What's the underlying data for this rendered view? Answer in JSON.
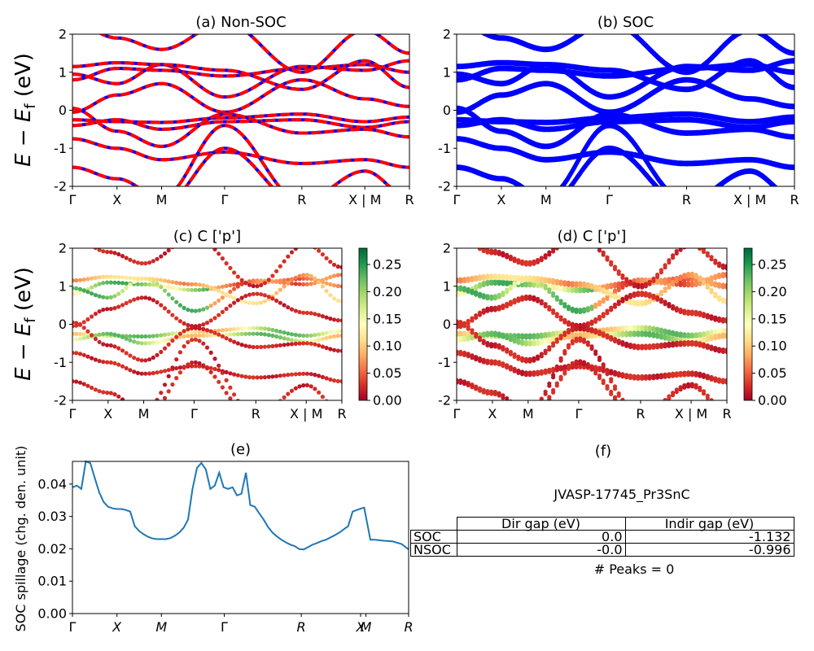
{
  "colors": {
    "nonsoc_blue": "#0000ff",
    "nonsoc_red": "#ff0000",
    "soc": "#0000ff",
    "spillage_line": "#1f77b4"
  },
  "ylabel_energy": "E − E",
  "ylabel_energy_sub": "f",
  "ylabel_energy_unit": " (eV)",
  "kpath_labels": [
    "Γ",
    "X",
    "M",
    "Γ",
    "R",
    "X | M",
    "R"
  ],
  "kpath_positions": [
    0,
    0.5,
    1.0,
    1.707,
    2.573,
    3.28,
    3.78
  ],
  "chart_data": [
    {
      "panel": "a",
      "type": "line",
      "title": "(a) Non-SOC",
      "ylim": [
        -2,
        2
      ],
      "yticks": [
        -2,
        -1,
        0,
        1,
        2
      ],
      "series_style": "blue solid with red dashed overlay",
      "note": "electronic band structure"
    },
    {
      "panel": "b",
      "type": "line",
      "title": "(b) SOC",
      "ylim": [
        -2,
        2
      ],
      "yticks": [
        -2,
        -1,
        0,
        1,
        2
      ],
      "series_style": "blue"
    },
    {
      "panel": "c",
      "type": "scatter",
      "title": "(c)  C ['p']",
      "ylim": [
        -2,
        2
      ],
      "yticks": [
        -2,
        -1,
        0,
        1,
        2
      ],
      "colorbar": {
        "colormap": "RdYlGn",
        "range": [
          0,
          0.28
        ],
        "ticks": [
          "0.00",
          "0.05",
          "0.10",
          "0.15",
          "0.20",
          "0.25"
        ]
      }
    },
    {
      "panel": "d",
      "type": "scatter",
      "title": "(d) C ['p']",
      "ylim": [
        -2,
        2
      ],
      "yticks": [
        -2,
        -1,
        0,
        1,
        2
      ],
      "colorbar": {
        "colormap": "RdYlGn",
        "range": [
          0,
          0.28
        ],
        "ticks": [
          "0.00",
          "0.05",
          "0.10",
          "0.15",
          "0.20",
          "0.25"
        ]
      }
    },
    {
      "panel": "e",
      "type": "line",
      "title": "(e)",
      "ylabel": "SOC spillage (chg. den. unit)",
      "ylim": [
        0,
        0.047
      ],
      "yticks": [
        "0.00",
        "0.01",
        "0.02",
        "0.03",
        "0.04"
      ],
      "xticks": [
        "Γ",
        "X",
        "M",
        "Γ",
        "R",
        "X",
        "M",
        "R"
      ],
      "x": [
        0,
        0.05,
        0.1,
        0.15,
        0.2,
        0.25,
        0.3,
        0.35,
        0.4,
        0.45,
        0.5,
        0.55,
        0.6,
        0.65,
        0.7,
        0.75,
        0.8,
        0.85,
        0.9,
        0.95,
        1.0,
        1.05,
        1.1,
        1.15,
        1.2,
        1.25,
        1.3,
        1.35,
        1.4,
        1.45,
        1.5,
        1.55,
        1.6,
        1.65,
        1.7,
        1.75,
        1.8,
        1.85,
        1.9,
        1.95,
        2.0,
        2.05,
        2.1,
        2.15,
        2.2,
        2.25,
        2.3,
        2.35,
        2.4,
        2.45,
        2.5,
        2.55,
        2.6,
        2.65,
        2.7,
        2.75,
        2.8,
        2.85,
        2.9,
        2.95,
        3.0,
        3.05,
        3.1,
        3.15,
        3.2,
        3.25,
        3.28,
        3.35,
        3.4,
        3.5,
        3.6,
        3.7,
        3.78
      ],
      "values": [
        0.039,
        0.0395,
        0.0385,
        0.047,
        0.0465,
        0.042,
        0.0375,
        0.0345,
        0.033,
        0.0325,
        0.0323,
        0.0323,
        0.032,
        0.0315,
        0.027,
        0.0255,
        0.0245,
        0.0237,
        0.0232,
        0.023,
        0.023,
        0.023,
        0.0233,
        0.024,
        0.025,
        0.0265,
        0.029,
        0.0385,
        0.045,
        0.0465,
        0.0445,
        0.0385,
        0.0395,
        0.0435,
        0.039,
        0.0385,
        0.039,
        0.0365,
        0.037,
        0.0435,
        0.0335,
        0.033,
        0.031,
        0.029,
        0.0267,
        0.025,
        0.0238,
        0.0228,
        0.022,
        0.0213,
        0.0208,
        0.0199,
        0.0198,
        0.0205,
        0.0213,
        0.0218,
        0.0224,
        0.0228,
        0.0235,
        0.0242,
        0.025,
        0.026,
        0.027,
        0.0315,
        0.032,
        0.0325,
        0.0327,
        0.0228,
        0.0228,
        0.0225,
        0.0223,
        0.0215,
        0.0198
      ]
    }
  ],
  "info_panel": {
    "title": "(f)",
    "material": "JVASP-17745_Pr3SnC",
    "table": {
      "headers": [
        "",
        "Dir gap (eV)",
        "Indir gap (eV)"
      ],
      "rows": [
        {
          "label": "SOC",
          "dir": "0.0",
          "indir": "-1.132"
        },
        {
          "label": "NSOC",
          "dir": "-0.0",
          "indir": "-0.996"
        }
      ]
    },
    "peaks": "# Peaks = 0"
  }
}
